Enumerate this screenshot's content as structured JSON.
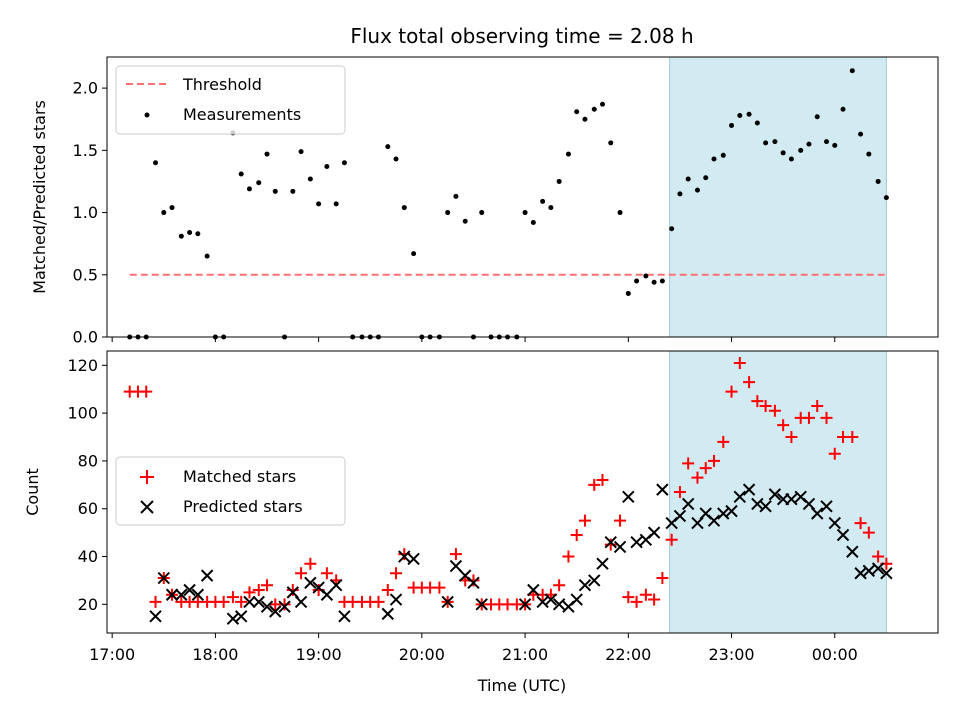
{
  "chart_data": [
    {
      "type": "scatter",
      "panel": "top",
      "title": "Flux total observing time = 2.08 h",
      "xlabel": "",
      "ylabel": "Matched/Predicted stars",
      "xlim": [
        16.95,
        25.0
      ],
      "ylim": [
        0,
        2.25
      ],
      "yticks": [
        0.0,
        0.5,
        1.0,
        1.5,
        2.0
      ],
      "ytick_labels": [
        "0.0",
        "0.5",
        "1.0",
        "1.5",
        "2.0"
      ],
      "highlight_span": [
        22.4,
        24.5
      ],
      "threshold": {
        "value": 0.5,
        "x_range": [
          17.17,
          24.5
        ],
        "color": "#ff7070",
        "name": "Threshold"
      },
      "legend": {
        "position": "top-left",
        "entries": [
          "Threshold",
          "Measurements"
        ]
      },
      "series": [
        {
          "name": "Measurements",
          "color": "#000000",
          "x": [
            17.17,
            17.25,
            17.33,
            17.42,
            17.5,
            17.58,
            17.67,
            17.75,
            17.83,
            17.92,
            18.0,
            18.08,
            18.17,
            18.25,
            18.33,
            18.42,
            18.5,
            18.58,
            18.67,
            18.75,
            18.83,
            18.92,
            19.0,
            19.08,
            19.17,
            19.25,
            19.33,
            19.42,
            19.5,
            19.58,
            19.67,
            19.75,
            19.83,
            19.92,
            20.0,
            20.08,
            20.17,
            20.25,
            20.33,
            20.42,
            20.5,
            20.58,
            20.67,
            20.75,
            20.83,
            20.92,
            21.0,
            21.08,
            21.17,
            21.25,
            21.33,
            21.42,
            21.5,
            21.58,
            21.67,
            21.75,
            21.83,
            21.92,
            22.0,
            22.08,
            22.17,
            22.25,
            22.33,
            22.42,
            22.5,
            22.58,
            22.67,
            22.75,
            22.83,
            22.92,
            23.0,
            23.08,
            23.17,
            23.25,
            23.33,
            23.42,
            23.5,
            23.58,
            23.67,
            23.75,
            23.83,
            23.92,
            24.0,
            24.08,
            24.17,
            24.25,
            24.33,
            24.42,
            24.5
          ],
          "y": [
            0,
            0,
            0,
            1.4,
            1.0,
            1.04,
            0.81,
            0.84,
            0.83,
            0.65,
            0,
            0,
            1.64,
            1.31,
            1.19,
            1.24,
            1.47,
            1.17,
            0,
            1.17,
            1.49,
            1.27,
            1.07,
            1.37,
            1.07,
            1.4,
            0,
            0,
            0,
            0,
            1.53,
            1.43,
            1.04,
            0.67,
            0,
            0,
            0,
            1.0,
            1.13,
            0.93,
            0,
            1.0,
            0,
            0,
            0,
            0,
            1.0,
            0.92,
            1.09,
            1.04,
            1.25,
            1.47,
            1.81,
            1.75,
            1.83,
            1.87,
            1.56,
            1.0,
            0.35,
            0.45,
            0.49,
            0.44,
            0.45,
            0.87,
            1.15,
            1.27,
            1.18,
            1.28,
            1.43,
            1.46,
            1.7,
            1.78,
            1.79,
            1.72,
            1.56,
            1.57,
            1.48,
            1.43,
            1.5,
            1.55,
            1.77,
            1.57,
            1.54,
            1.83,
            2.14,
            1.63,
            1.47,
            1.25,
            1.12
          ]
        }
      ]
    },
    {
      "type": "scatter",
      "panel": "bottom",
      "title": "",
      "xlabel": "Time (UTC)",
      "ylabel": "Count",
      "xlim": [
        16.95,
        25.0
      ],
      "ylim": [
        8,
        126
      ],
      "xticks": [
        17,
        18,
        19,
        20,
        21,
        22,
        23,
        24
      ],
      "xtick_labels": [
        "17:00",
        "18:00",
        "19:00",
        "20:00",
        "21:00",
        "22:00",
        "23:00",
        "00:00"
      ],
      "yticks": [
        20,
        40,
        60,
        80,
        100,
        120
      ],
      "ytick_labels": [
        "20",
        "40",
        "60",
        "80",
        "100",
        "120"
      ],
      "highlight_span": [
        22.4,
        24.5
      ],
      "legend": {
        "position": "center-left",
        "entries": [
          "Matched stars",
          "Predicted stars"
        ]
      },
      "series": [
        {
          "name": "Matched stars",
          "marker": "plus",
          "color": "#ff0000",
          "x": [
            17.17,
            17.25,
            17.33,
            17.42,
            17.5,
            17.58,
            17.67,
            17.75,
            17.83,
            17.92,
            18.0,
            18.08,
            18.17,
            18.25,
            18.33,
            18.42,
            18.5,
            18.58,
            18.67,
            18.75,
            18.83,
            18.92,
            19.0,
            19.08,
            19.17,
            19.25,
            19.33,
            19.42,
            19.5,
            19.58,
            19.67,
            19.75,
            19.83,
            19.92,
            20.0,
            20.08,
            20.17,
            20.25,
            20.33,
            20.42,
            20.5,
            20.58,
            20.67,
            20.75,
            20.83,
            20.92,
            21.0,
            21.08,
            21.17,
            21.25,
            21.33,
            21.42,
            21.5,
            21.58,
            21.67,
            21.75,
            21.83,
            21.92,
            22.0,
            22.08,
            22.17,
            22.25,
            22.33,
            22.42,
            22.5,
            22.58,
            22.67,
            22.75,
            22.83,
            22.92,
            23.0,
            23.08,
            23.17,
            23.25,
            23.33,
            23.42,
            23.5,
            23.58,
            23.67,
            23.75,
            23.83,
            23.92,
            24.0,
            24.08,
            24.17,
            24.25,
            24.33,
            24.42,
            24.5
          ],
          "y": [
            109,
            109,
            109,
            21,
            31,
            24,
            21,
            21,
            21,
            21,
            21,
            21,
            23,
            21,
            25,
            26,
            28,
            20,
            20,
            26,
            33,
            37,
            26,
            33,
            30,
            21,
            21,
            21,
            21,
            21,
            26,
            33,
            41,
            27,
            27,
            27,
            27,
            21,
            41,
            30,
            30,
            20,
            20,
            20,
            20,
            20,
            20,
            24,
            24,
            24,
            28,
            40,
            49,
            55,
            70,
            72,
            45,
            55,
            23,
            21,
            24,
            22,
            31,
            47,
            67,
            79,
            73,
            77,
            80,
            88,
            109,
            121,
            113,
            105,
            103,
            101,
            95,
            90,
            98,
            98,
            103,
            98,
            83,
            90,
            90,
            54,
            50,
            40,
            37
          ]
        },
        {
          "name": "Predicted stars",
          "marker": "x",
          "color": "#000000",
          "x": [
            17.42,
            17.5,
            17.58,
            17.67,
            17.75,
            17.83,
            17.92,
            18.17,
            18.25,
            18.33,
            18.42,
            18.5,
            18.58,
            18.67,
            18.75,
            18.83,
            18.92,
            19.0,
            19.08,
            19.17,
            19.25,
            19.67,
            19.75,
            19.83,
            19.92,
            20.25,
            20.33,
            20.42,
            20.5,
            20.58,
            21.0,
            21.08,
            21.17,
            21.25,
            21.33,
            21.42,
            21.5,
            21.58,
            21.67,
            21.75,
            21.83,
            21.92,
            22.0,
            22.08,
            22.17,
            22.25,
            22.33,
            22.42,
            22.5,
            22.58,
            22.67,
            22.75,
            22.83,
            22.92,
            23.0,
            23.08,
            23.17,
            23.25,
            23.33,
            23.42,
            23.5,
            23.58,
            23.67,
            23.75,
            23.83,
            23.92,
            24.0,
            24.08,
            24.17,
            24.25,
            24.33,
            24.42,
            24.5
          ],
          "y": [
            15,
            31,
            24,
            24,
            26,
            24,
            32,
            14,
            15,
            21,
            21,
            19,
            17,
            19,
            25,
            21,
            29,
            27,
            24,
            28,
            15,
            16,
            22,
            40,
            39,
            21,
            36,
            32,
            29,
            20,
            20,
            26,
            21,
            22,
            20,
            19,
            22,
            28,
            30,
            37,
            46,
            44,
            65,
            46,
            47,
            50,
            68,
            54,
            57,
            62,
            54,
            58,
            55,
            58,
            59,
            65,
            68,
            62,
            61,
            66,
            64,
            64,
            65,
            62,
            58,
            61,
            54,
            49,
            42,
            33,
            34,
            35,
            33
          ]
        }
      ]
    }
  ]
}
